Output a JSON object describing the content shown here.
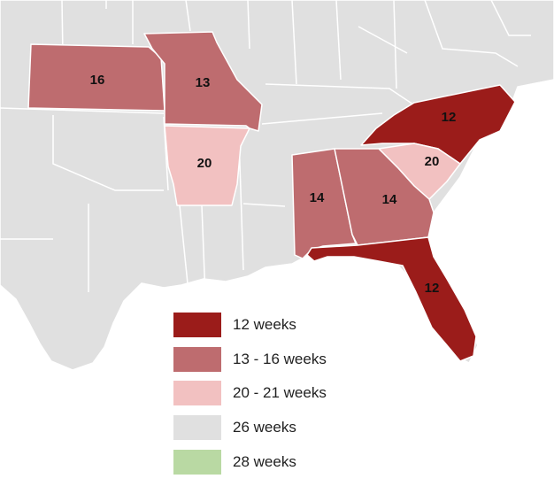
{
  "colors": {
    "land": "#e0e0e0",
    "border": "#ffffff",
    "water": "#ffffff"
  },
  "states": [
    {
      "id": "kansas",
      "label": "16",
      "fill": "#be6c6f"
    },
    {
      "id": "missouri",
      "label": "13",
      "fill": "#be6c6f"
    },
    {
      "id": "arkansas",
      "label": "20",
      "fill": "#f2c1c1"
    },
    {
      "id": "north-carolina",
      "label": "12",
      "fill": "#9b1c1a"
    },
    {
      "id": "south-carolina",
      "label": "20",
      "fill": "#f2c1c1"
    },
    {
      "id": "alabama",
      "label": "14",
      "fill": "#be6c6f"
    },
    {
      "id": "georgia",
      "label": "14",
      "fill": "#be6c6f"
    },
    {
      "id": "florida",
      "label": "12",
      "fill": "#9b1c1a"
    }
  ],
  "legend": {
    "items": [
      {
        "label": "12 weeks",
        "color": "#9b1c1a"
      },
      {
        "label": "13 - 16 weeks",
        "color": "#be6c6f"
      },
      {
        "label": "20 - 21 weeks",
        "color": "#f2c1c1"
      },
      {
        "label": "26 weeks",
        "color": "#e0e0e0"
      },
      {
        "label": "28 weeks",
        "color": "#b9d9a3"
      }
    ]
  }
}
